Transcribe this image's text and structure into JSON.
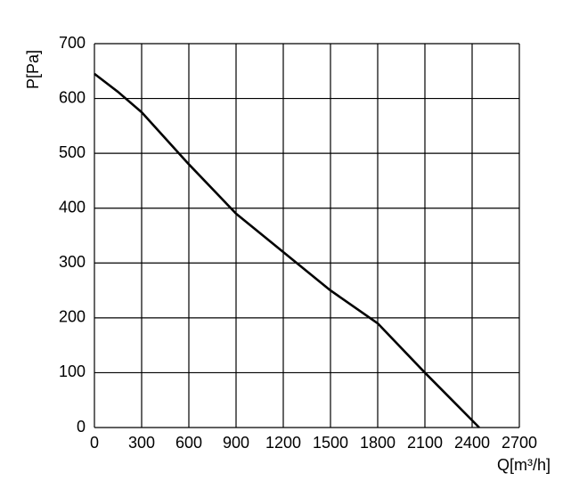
{
  "chart_data": {
    "type": "line",
    "x_label": "Q[m³/h]",
    "y_label": "P[Pa]",
    "x": [
      0,
      150,
      300,
      600,
      900,
      1200,
      1500,
      1650,
      1800,
      2100,
      2445
    ],
    "series": [
      {
        "color": "#000000",
        "values": [
          645,
          612,
          575,
          480,
          390,
          320,
          250,
          220,
          190,
          100,
          0
        ]
      }
    ],
    "xlim": [
      0,
      2700
    ],
    "xticks": [
      0,
      300,
      600,
      900,
      1200,
      1500,
      1800,
      2100,
      2400,
      2700
    ],
    "ylim": [
      0,
      700
    ],
    "yticks": [
      0,
      100,
      200,
      300,
      400,
      500,
      600,
      700
    ],
    "grid": true
  }
}
